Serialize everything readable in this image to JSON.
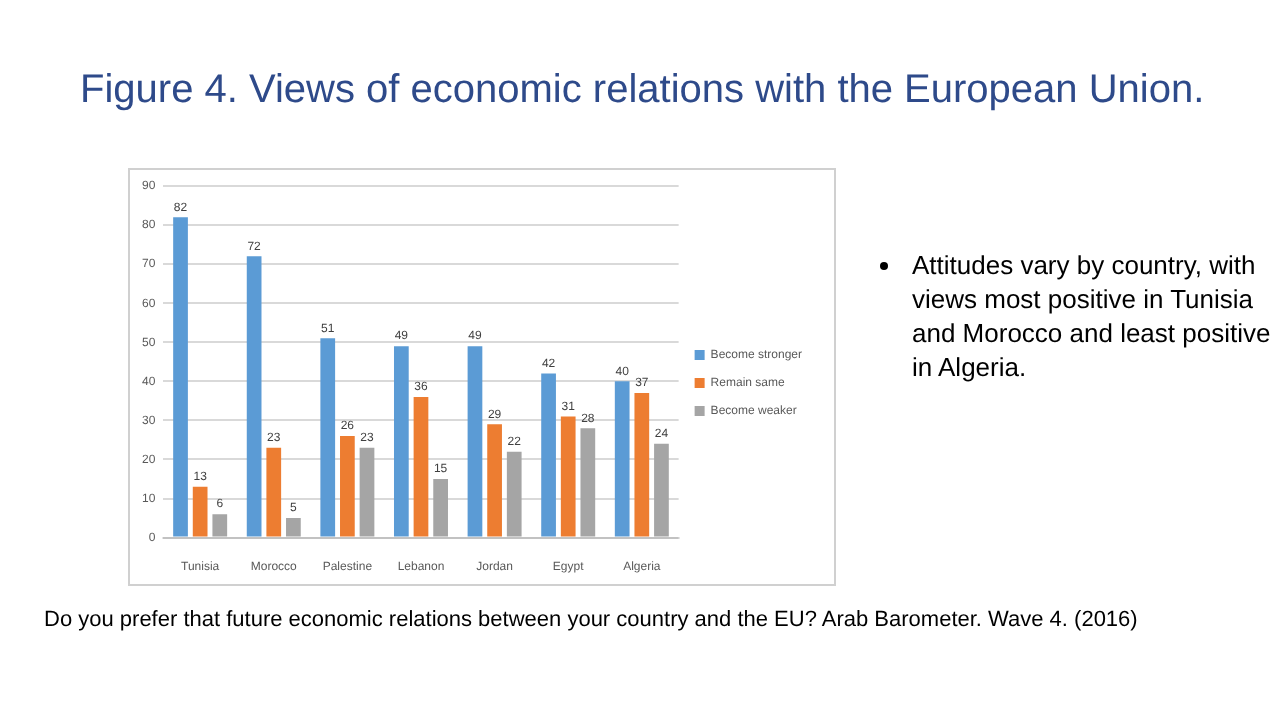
{
  "chart_data": {
    "type": "bar",
    "title": "Figure 4. Views of economic relations with the European Union.",
    "categories": [
      "Tunisia",
      "Morocco",
      "Palestine",
      "Lebanon",
      "Jordan",
      "Egypt",
      "Algeria"
    ],
    "series": [
      {
        "name": "Become stronger",
        "color": "#5b9bd5",
        "values": [
          82,
          72,
          51,
          49,
          49,
          42,
          40
        ]
      },
      {
        "name": "Remain same",
        "color": "#ed7d31",
        "values": [
          13,
          23,
          26,
          36,
          29,
          31,
          37
        ]
      },
      {
        "name": "Become weaker",
        "color": "#a5a5a5",
        "values": [
          6,
          5,
          23,
          15,
          22,
          28,
          24
        ]
      }
    ],
    "ylim": [
      0,
      90
    ],
    "yticks": [
      0,
      10,
      20,
      30,
      40,
      50,
      60,
      70,
      80,
      90
    ],
    "grid": "y",
    "legend": "right",
    "data_labels": true,
    "annotations": [
      "Attitudes vary by country, with views most positive in Tunisia and Morocco and least positive in Algeria.",
      "Do you prefer that future economic relations between your country and the EU? Arab Barometer. Wave 4. (2016)"
    ]
  }
}
